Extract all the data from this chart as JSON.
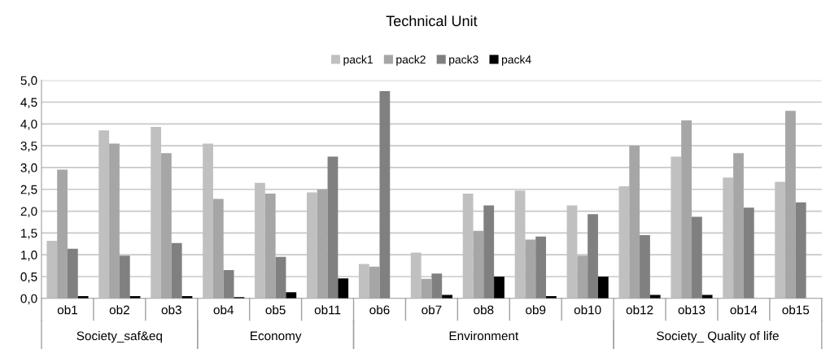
{
  "chart_data": {
    "type": "bar",
    "title": "Technical Unit",
    "categories": [
      "ob1",
      "ob2",
      "ob3",
      "ob4",
      "ob5",
      "ob11",
      "ob6",
      "ob7",
      "ob8",
      "ob9",
      "ob10",
      "ob12",
      "ob13",
      "ob14",
      "ob15"
    ],
    "series": [
      {
        "name": "pack1",
        "color": "#c0c0c0",
        "values": [
          1.32,
          3.85,
          3.93,
          3.55,
          2.65,
          2.43,
          0.79,
          1.05,
          2.4,
          2.47,
          2.13,
          2.57,
          3.25,
          2.77,
          2.67
        ]
      },
      {
        "name": "pack2",
        "color": "#a6a6a6",
        "values": [
          2.95,
          3.55,
          3.33,
          2.28,
          2.4,
          2.5,
          0.73,
          0.45,
          1.55,
          1.35,
          0.98,
          3.5,
          4.08,
          3.33,
          4.3
        ]
      },
      {
        "name": "pack3",
        "color": "#808080",
        "values": [
          1.14,
          0.98,
          1.27,
          0.65,
          0.95,
          3.25,
          4.75,
          0.57,
          2.13,
          1.42,
          1.93,
          1.45,
          1.87,
          2.08,
          2.2
        ]
      },
      {
        "name": "pack4",
        "color": "#000000",
        "values": [
          0.05,
          0.05,
          0.05,
          0.03,
          0.14,
          0.46,
          0,
          0.08,
          0.5,
          0.05,
          0.5,
          0.08,
          0.08,
          0,
          0
        ]
      }
    ],
    "annotations": [
      "Society_saf&eq",
      "Economy",
      "Environment",
      "Society_ Quality of life"
    ],
    "ylim": [
      0,
      5
    ],
    "yticks": [
      {
        "value": 0,
        "label": "0,0"
      },
      {
        "value": 0.5,
        "label": "0,5"
      },
      {
        "value": 1,
        "label": "1,0"
      },
      {
        "value": 1.5,
        "label": "1,5"
      },
      {
        "value": 2,
        "label": "2,0"
      },
      {
        "value": 2.5,
        "label": "2,5"
      },
      {
        "value": 3,
        "label": "3,0"
      },
      {
        "value": 3.5,
        "label": "3,5"
      },
      {
        "value": 4,
        "label": "4,0"
      },
      {
        "value": 4.5,
        "label": "4,5"
      },
      {
        "value": 5,
        "label": "5,0"
      }
    ],
    "grid": "y",
    "legend": "top"
  }
}
